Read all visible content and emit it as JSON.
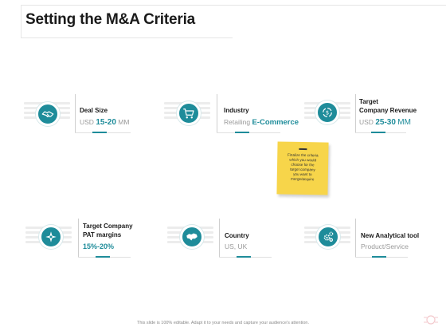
{
  "title": "Setting the M&A Criteria",
  "cards": {
    "deal_size": {
      "label": "Deal Size",
      "value_prefix": "USD",
      "value_highlight": "15-20",
      "value_suffix": "MM",
      "icon": "handshake-icon"
    },
    "industry": {
      "label": "Industry",
      "value_prefix": "Retailing",
      "value_highlight": "E-Commerce",
      "icon": "shopping-cart-icon"
    },
    "revenue": {
      "label_line1": "Target",
      "label_line2": "Company Revenue",
      "value_prefix": "USD",
      "value_highlight": "25-30",
      "value_suffix": "MM",
      "icon": "money-cycle-icon"
    },
    "pat": {
      "label_line1": "Target Company",
      "label_line2": "PAT margins",
      "value": "15%-20%",
      "icon": "compass-icon"
    },
    "country": {
      "label": "Country",
      "value": "US, UK",
      "icon": "map-icon"
    },
    "tool": {
      "label": "New Analytical tool",
      "value": "Product/Service",
      "icon": "gears-icon"
    }
  },
  "note": {
    "line1": "Finalize the criteria",
    "line2": "which you would",
    "line3": "choose for the",
    "line4": "target company",
    "line5": "you want to",
    "line6": "merge/acquire"
  },
  "footer": "This slide is 100% editable. Adapt it to your needs and capture your audience's attention.",
  "colors": {
    "accent": "#1e8c9a",
    "note": "#f7d54a"
  }
}
